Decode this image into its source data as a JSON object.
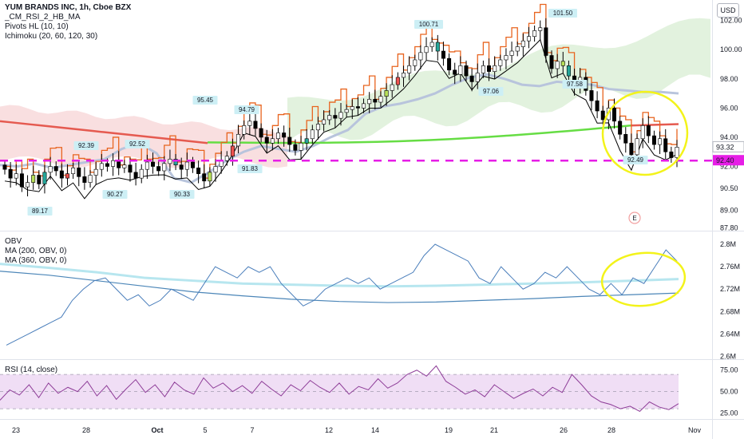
{
  "header": {
    "title": "YUM BRANDS INC, 1h, Cboe BZX",
    "indicators": [
      "_CM_RSI_2_HB_MA",
      "Pivots HL (10, 10)",
      "Ichimoku (20, 60, 120, 30)"
    ]
  },
  "currency": "USD",
  "obv_pane": {
    "title": "OBV",
    "lines": [
      "MA (200, OBV, 0)",
      "MA (360, OBV, 0)"
    ]
  },
  "rsi_pane": {
    "title": "RSI (14, close)"
  },
  "colors": {
    "up": "#26a69a",
    "down": "#ef5350",
    "candle_body_up": "#ffffff",
    "candle_body_down": "#000000",
    "orange": "#e8641f",
    "kijun": "#000000",
    "chikou_blue": "#b8c4dc",
    "green_ma": "#66dd44",
    "red_ma": "#e55a50",
    "cloud_green": "#d6ecd0",
    "cloud_red": "#f7d4d6",
    "magenta": "#e61ee6",
    "yellow": "#f3f31a",
    "obv_line": "#4a7ebb",
    "obv_ma200": "#b7e6ef",
    "obv_ma360": "#4c86b8",
    "rsi_line": "#8e3d98",
    "rsi_band": "#f0def5"
  },
  "chart_data": [
    {
      "type": "candlestick",
      "name": "price",
      "x_ticks": [
        "23",
        "28",
        "Oct",
        "5",
        "7",
        "12",
        "14",
        "19",
        "21",
        "26",
        "28",
        "Nov"
      ],
      "y_ticks": [
        87.8,
        89.0,
        90.5,
        92.0,
        94.0,
        96.0,
        98.0,
        100.0,
        102.0
      ],
      "ylim": [
        87.6,
        103.4
      ],
      "last_price": 93.32,
      "level_price": 92.4,
      "pivot_labels": [
        {
          "x_ref": "23-28",
          "value": "89.17"
        },
        {
          "x_ref": "28",
          "value": "92.39"
        },
        {
          "x_ref": "28",
          "value": "90.27"
        },
        {
          "x_ref": "Oct",
          "value": "92.52"
        },
        {
          "x_ref": "Oct",
          "value": "90.33"
        },
        {
          "x_ref": "5",
          "value": "95.45"
        },
        {
          "x_ref": "7",
          "value": "94.79"
        },
        {
          "x_ref": "7",
          "value": "91.83"
        },
        {
          "x_ref": "19",
          "value": "100.71"
        },
        {
          "x_ref": "21",
          "value": "97.06"
        },
        {
          "x_ref": "26",
          "value": "101.50"
        },
        {
          "x_ref": "26",
          "value": "97.58"
        },
        {
          "x_ref": "28",
          "value": "92.49"
        }
      ],
      "earnings_marker": "E",
      "close_series": [
        91.8,
        91.2,
        91.5,
        90.6,
        90.9,
        91.4,
        90.8,
        91.6,
        92.0,
        91.7,
        91.2,
        91.5,
        91.9,
        91.3,
        90.9,
        91.4,
        91.8,
        92.2,
        92.0,
        92.4,
        91.9,
        92.1,
        91.6,
        91.2,
        91.8,
        92.3,
        92.0,
        91.7,
        92.2,
        92.5,
        92.1,
        91.8,
        92.3,
        91.9,
        91.5,
        91.0,
        91.6,
        92.0,
        92.4,
        92.7,
        93.4,
        94.2,
        94.8,
        95.1,
        94.6,
        94.0,
        93.6,
        93.9,
        94.3,
        94.0,
        93.5,
        93.1,
        93.6,
        93.9,
        94.5,
        94.9,
        95.2,
        95.5,
        95.3,
        95.7,
        95.9,
        96.1,
        96.0,
        96.3,
        96.6,
        96.4,
        96.8,
        97.2,
        97.6,
        98.1,
        98.4,
        98.9,
        99.3,
        99.8,
        100.2,
        100.5,
        99.9,
        99.4,
        98.6,
        98.3,
        98.9,
        98.2,
        97.8,
        98.4,
        98.9,
        98.5,
        98.9,
        99.3,
        99.6,
        99.9,
        100.2,
        100.6,
        100.9,
        101.3,
        101.5,
        99.6,
        98.7,
        99.2,
        98.9,
        98.2,
        97.5,
        98.1,
        97.2,
        96.5,
        95.8,
        95.2,
        96.0,
        95.1,
        94.2,
        93.6,
        92.8,
        93.9,
        94.8,
        94.1,
        93.5,
        93.9,
        93.0,
        92.6,
        93.32
      ],
      "ichimoku_ranges": {
        "cloud": [
          95.2,
          99.2
        ],
        "kijun_end": 95.2
      },
      "red_ma_y": [
        95.2,
        93.7
      ],
      "green_ma_y": [
        93.2,
        95.1
      ],
      "yellow_ellipse_range": [
        92.0,
        96.6
      ]
    },
    {
      "type": "line",
      "name": "OBV",
      "y_ticks": [
        "2.6M",
        "2.64M",
        "2.68M",
        "2.72M",
        "2.76M",
        "2.8M"
      ],
      "ylim": [
        2.595,
        2.82
      ],
      "series": [
        {
          "name": "OBV",
          "values": [
            2.62,
            2.63,
            2.64,
            2.65,
            2.66,
            2.67,
            2.7,
            2.72,
            2.735,
            2.74,
            2.72,
            2.7,
            2.71,
            2.69,
            2.7,
            2.72,
            2.71,
            2.7,
            2.73,
            2.76,
            2.75,
            2.74,
            2.76,
            2.75,
            2.76,
            2.73,
            2.71,
            2.69,
            2.7,
            2.72,
            2.73,
            2.74,
            2.73,
            2.74,
            2.72,
            2.73,
            2.74,
            2.75,
            2.78,
            2.8,
            2.79,
            2.78,
            2.77,
            2.74,
            2.73,
            2.76,
            2.74,
            2.72,
            2.73,
            2.75,
            2.74,
            2.76,
            2.74,
            2.72,
            2.71,
            2.73,
            2.71,
            2.74,
            2.73,
            2.76,
            2.79,
            2.77
          ]
        },
        {
          "name": "MA (200, OBV, 0)",
          "values": [
            2.765,
            2.758,
            2.75,
            2.74,
            2.735,
            2.73,
            2.728,
            2.726,
            2.725,
            2.726,
            2.728,
            2.73,
            2.732,
            2.735,
            2.738
          ]
        },
        {
          "name": "MA (360, OBV, 0)",
          "values": [
            2.752,
            2.745,
            2.735,
            2.725,
            2.715,
            2.708,
            2.702,
            2.698,
            2.696,
            2.697,
            2.7,
            2.703,
            2.707,
            2.71,
            2.713
          ]
        }
      ]
    },
    {
      "type": "line",
      "name": "RSI",
      "y_ticks": [
        "25.00",
        "50.00",
        "75.00"
      ],
      "ylim": [
        18,
        85
      ],
      "band": [
        30,
        70
      ],
      "series": [
        {
          "name": "RSI",
          "values": [
            40,
            52,
            46,
            58,
            43,
            60,
            48,
            55,
            50,
            62,
            45,
            57,
            41,
            53,
            64,
            49,
            58,
            44,
            61,
            52,
            47,
            66,
            54,
            60,
            50,
            57,
            48,
            62,
            53,
            45,
            58,
            51,
            63,
            55,
            49,
            60,
            47,
            56,
            52,
            65,
            54,
            60,
            70,
            75,
            68,
            80,
            62,
            55,
            47,
            52,
            44,
            58,
            50,
            42,
            48,
            53,
            45,
            55,
            49,
            70,
            58,
            45,
            38,
            35,
            30,
            33,
            27,
            38,
            32,
            29,
            36
          ]
        }
      ]
    }
  ]
}
